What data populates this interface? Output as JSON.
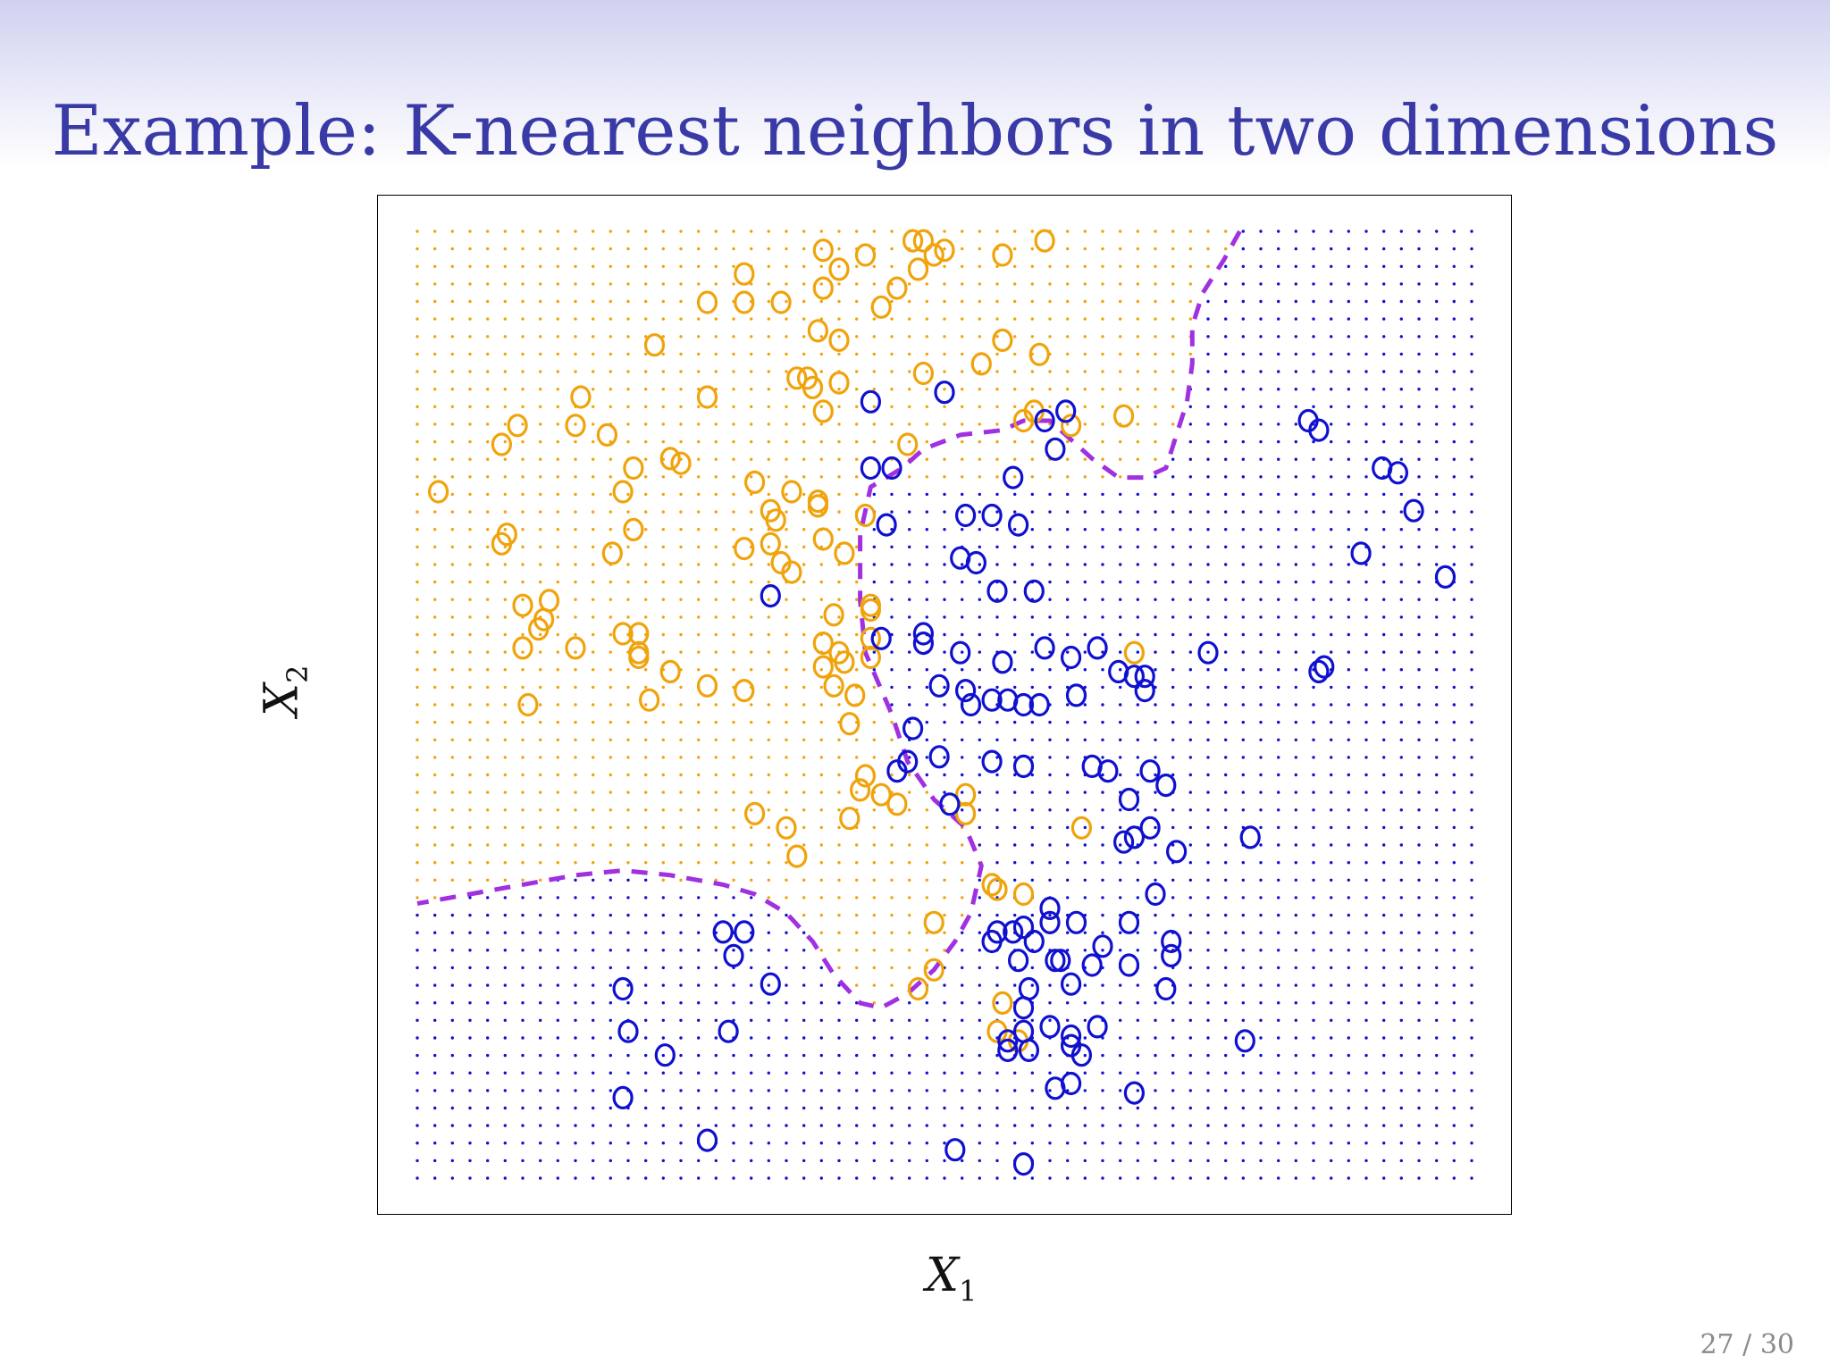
{
  "slide": {
    "title": "Example: K-nearest neighbors in two dimensions",
    "page": "27 / 30"
  },
  "colors": {
    "orange": "#f0a30a",
    "blue": "#1010d0",
    "boundary": "#a030e0",
    "title": "#3a3aa6"
  },
  "chart_data": {
    "type": "scatter",
    "title": "",
    "xlabel_var": "X",
    "xlabel_sub": "1",
    "ylabel_var": "X",
    "ylabel_sub": "2",
    "xlim": [
      0,
      1
    ],
    "ylim": [
      0,
      1
    ],
    "marker": "o",
    "grid_points": {
      "nx": 61,
      "ny": 55
    },
    "legend": "none",
    "series": [
      {
        "class": "orange",
        "color": "#f0a30a",
        "points": [
          [
            0.02,
            0.725
          ],
          [
            0.08,
            0.775
          ],
          [
            0.095,
            0.795
          ],
          [
            0.15,
            0.795
          ],
          [
            0.18,
            0.785
          ],
          [
            0.155,
            0.825
          ],
          [
            0.195,
            0.725
          ],
          [
            0.205,
            0.685
          ],
          [
            0.185,
            0.66
          ],
          [
            0.225,
            0.88
          ],
          [
            0.24,
            0.76
          ],
          [
            0.205,
            0.75
          ],
          [
            0.25,
            0.755
          ],
          [
            0.275,
            0.825
          ],
          [
            0.31,
            0.925
          ],
          [
            0.275,
            0.925
          ],
          [
            0.31,
            0.955
          ],
          [
            0.38,
            0.895
          ],
          [
            0.4,
            0.885
          ],
          [
            0.37,
            0.845
          ],
          [
            0.345,
            0.925
          ],
          [
            0.355,
            0.725
          ],
          [
            0.32,
            0.735
          ],
          [
            0.08,
            0.67
          ],
          [
            0.085,
            0.68
          ],
          [
            0.1,
            0.605
          ],
          [
            0.125,
            0.61
          ],
          [
            0.12,
            0.59
          ],
          [
            0.115,
            0.58
          ],
          [
            0.1,
            0.56
          ],
          [
            0.15,
            0.56
          ],
          [
            0.195,
            0.575
          ],
          [
            0.21,
            0.575
          ],
          [
            0.21,
            0.555
          ],
          [
            0.21,
            0.55
          ],
          [
            0.24,
            0.535
          ],
          [
            0.22,
            0.505
          ],
          [
            0.105,
            0.5
          ],
          [
            0.275,
            0.52
          ],
          [
            0.31,
            0.515
          ],
          [
            0.355,
            0.64
          ],
          [
            0.31,
            0.665
          ],
          [
            0.38,
            0.715
          ],
          [
            0.38,
            0.71
          ],
          [
            0.335,
            0.705
          ],
          [
            0.335,
            0.67
          ],
          [
            0.34,
            0.695
          ],
          [
            0.345,
            0.65
          ],
          [
            0.385,
            0.675
          ],
          [
            0.385,
            0.54
          ],
          [
            0.385,
            0.565
          ],
          [
            0.4,
            0.555
          ],
          [
            0.405,
            0.545
          ],
          [
            0.395,
            0.52
          ],
          [
            0.415,
            0.51
          ],
          [
            0.41,
            0.48
          ],
          [
            0.43,
            0.55
          ],
          [
            0.43,
            0.57
          ],
          [
            0.43,
            0.605
          ],
          [
            0.395,
            0.595
          ],
          [
            0.405,
            0.66
          ],
          [
            0.425,
            0.7
          ],
          [
            0.385,
            0.81
          ],
          [
            0.375,
            0.835
          ],
          [
            0.36,
            0.845
          ],
          [
            0.4,
            0.84
          ],
          [
            0.465,
            0.775
          ],
          [
            0.48,
            0.85
          ],
          [
            0.535,
            0.86
          ],
          [
            0.555,
            0.885
          ],
          [
            0.555,
            0.975
          ],
          [
            0.49,
            0.975
          ],
          [
            0.475,
            0.96
          ],
          [
            0.4,
            0.96
          ],
          [
            0.425,
            0.975
          ],
          [
            0.385,
            0.94
          ],
          [
            0.385,
            0.98
          ],
          [
            0.455,
            0.94
          ],
          [
            0.44,
            0.92
          ],
          [
            0.43,
            0.6
          ],
          [
            0.455,
            0.395
          ],
          [
            0.425,
            0.425
          ],
          [
            0.42,
            0.41
          ],
          [
            0.44,
            0.405
          ],
          [
            0.41,
            0.38
          ],
          [
            0.35,
            0.37
          ],
          [
            0.32,
            0.385
          ],
          [
            0.36,
            0.34
          ],
          [
            0.52,
            0.385
          ],
          [
            0.52,
            0.405
          ],
          [
            0.575,
            0.3
          ],
          [
            0.545,
            0.31
          ],
          [
            0.55,
            0.305
          ],
          [
            0.49,
            0.27
          ],
          [
            0.475,
            0.2
          ],
          [
            0.49,
            0.22
          ],
          [
            0.555,
            0.185
          ],
          [
            0.55,
            0.155
          ],
          [
            0.57,
            0.145
          ],
          [
            0.63,
            0.37
          ],
          [
            0.68,
            0.555
          ],
          [
            0.575,
            0.8
          ],
          [
            0.585,
            0.81
          ],
          [
            0.62,
            0.795
          ],
          [
            0.67,
            0.805
          ],
          [
            0.59,
            0.87
          ],
          [
            0.595,
            0.99
          ],
          [
            0.48,
            0.99
          ],
          [
            0.5,
            0.98
          ],
          [
            0.47,
            0.99
          ]
        ]
      },
      {
        "class": "blue",
        "color": "#1010d0",
        "points": [
          [
            0.43,
            0.82
          ],
          [
            0.5,
            0.83
          ],
          [
            0.43,
            0.75
          ],
          [
            0.445,
            0.69
          ],
          [
            0.515,
            0.655
          ],
          [
            0.52,
            0.7
          ],
          [
            0.545,
            0.7
          ],
          [
            0.565,
            0.74
          ],
          [
            0.57,
            0.69
          ],
          [
            0.595,
            0.8
          ],
          [
            0.615,
            0.81
          ],
          [
            0.605,
            0.77
          ],
          [
            0.53,
            0.65
          ],
          [
            0.55,
            0.62
          ],
          [
            0.585,
            0.62
          ],
          [
            0.45,
            0.75
          ],
          [
            0.335,
            0.615
          ],
          [
            0.44,
            0.57
          ],
          [
            0.48,
            0.565
          ],
          [
            0.48,
            0.575
          ],
          [
            0.515,
            0.555
          ],
          [
            0.555,
            0.545
          ],
          [
            0.595,
            0.56
          ],
          [
            0.645,
            0.56
          ],
          [
            0.665,
            0.535
          ],
          [
            0.68,
            0.53
          ],
          [
            0.69,
            0.53
          ],
          [
            0.69,
            0.515
          ],
          [
            0.495,
            0.52
          ],
          [
            0.52,
            0.515
          ],
          [
            0.545,
            0.505
          ],
          [
            0.56,
            0.505
          ],
          [
            0.575,
            0.5
          ],
          [
            0.59,
            0.5
          ],
          [
            0.625,
            0.51
          ],
          [
            0.47,
            0.475
          ],
          [
            0.525,
            0.5
          ],
          [
            0.465,
            0.44
          ],
          [
            0.495,
            0.445
          ],
          [
            0.455,
            0.43
          ],
          [
            0.545,
            0.44
          ],
          [
            0.575,
            0.435
          ],
          [
            0.64,
            0.435
          ],
          [
            0.655,
            0.43
          ],
          [
            0.695,
            0.43
          ],
          [
            0.71,
            0.415
          ],
          [
            0.675,
            0.4
          ],
          [
            0.505,
            0.395
          ],
          [
            0.67,
            0.355
          ],
          [
            0.68,
            0.36
          ],
          [
            0.695,
            0.37
          ],
          [
            0.72,
            0.345
          ],
          [
            0.75,
            0.555
          ],
          [
            0.79,
            0.36
          ],
          [
            0.7,
            0.3
          ],
          [
            0.675,
            0.27
          ],
          [
            0.6,
            0.285
          ],
          [
            0.6,
            0.27
          ],
          [
            0.625,
            0.27
          ],
          [
            0.575,
            0.265
          ],
          [
            0.585,
            0.25
          ],
          [
            0.65,
            0.245
          ],
          [
            0.675,
            0.225
          ],
          [
            0.715,
            0.235
          ],
          [
            0.71,
            0.2
          ],
          [
            0.545,
            0.25
          ],
          [
            0.55,
            0.26
          ],
          [
            0.565,
            0.26
          ],
          [
            0.57,
            0.23
          ],
          [
            0.605,
            0.23
          ],
          [
            0.61,
            0.23
          ],
          [
            0.64,
            0.225
          ],
          [
            0.62,
            0.205
          ],
          [
            0.58,
            0.2
          ],
          [
            0.575,
            0.18
          ],
          [
            0.6,
            0.16
          ],
          [
            0.575,
            0.155
          ],
          [
            0.56,
            0.145
          ],
          [
            0.56,
            0.135
          ],
          [
            0.58,
            0.135
          ],
          [
            0.63,
            0.13
          ],
          [
            0.62,
            0.15
          ],
          [
            0.62,
            0.14
          ],
          [
            0.645,
            0.16
          ],
          [
            0.605,
            0.095
          ],
          [
            0.62,
            0.1
          ],
          [
            0.68,
            0.09
          ],
          [
            0.715,
            0.25
          ],
          [
            0.785,
            0.145
          ],
          [
            0.29,
            0.26
          ],
          [
            0.31,
            0.26
          ],
          [
            0.3,
            0.235
          ],
          [
            0.335,
            0.205
          ],
          [
            0.195,
            0.2
          ],
          [
            0.2,
            0.155
          ],
          [
            0.235,
            0.13
          ],
          [
            0.295,
            0.155
          ],
          [
            0.195,
            0.085
          ],
          [
            0.275,
            0.04
          ],
          [
            0.51,
            0.03
          ],
          [
            0.575,
            0.015
          ],
          [
            0.845,
            0.8
          ],
          [
            0.855,
            0.79
          ],
          [
            0.915,
            0.75
          ],
          [
            0.93,
            0.745
          ],
          [
            0.945,
            0.705
          ],
          [
            0.895,
            0.66
          ],
          [
            0.975,
            0.635
          ],
          [
            0.855,
            0.535
          ],
          [
            0.86,
            0.54
          ],
          [
            0.62,
            0.55
          ]
        ]
      }
    ],
    "boundary": {
      "style": "dashed",
      "color": "#a030e0",
      "curves": [
        [
          [
            0.78,
            1.0
          ],
          [
            0.765,
            0.97
          ],
          [
            0.745,
            0.935
          ],
          [
            0.735,
            0.9
          ],
          [
            0.735,
            0.86
          ],
          [
            0.73,
            0.82
          ],
          [
            0.72,
            0.785
          ],
          [
            0.71,
            0.75
          ],
          [
            0.69,
            0.74
          ],
          [
            0.665,
            0.74
          ],
          [
            0.64,
            0.76
          ],
          [
            0.62,
            0.78
          ],
          [
            0.6,
            0.8
          ],
          [
            0.575,
            0.8
          ],
          [
            0.555,
            0.79
          ],
          [
            0.515,
            0.785
          ],
          [
            0.48,
            0.77
          ],
          [
            0.46,
            0.75
          ],
          [
            0.43,
            0.73
          ],
          [
            0.42,
            0.68
          ],
          [
            0.42,
            0.61
          ],
          [
            0.425,
            0.555
          ],
          [
            0.45,
            0.49
          ],
          [
            0.465,
            0.44
          ],
          [
            0.49,
            0.4
          ],
          [
            0.52,
            0.37
          ],
          [
            0.535,
            0.33
          ],
          [
            0.525,
            0.28
          ],
          [
            0.51,
            0.25
          ],
          [
            0.49,
            0.22
          ],
          [
            0.465,
            0.195
          ],
          [
            0.44,
            0.18
          ],
          [
            0.42,
            0.185
          ],
          [
            0.395,
            0.215
          ],
          [
            0.375,
            0.25
          ],
          [
            0.35,
            0.28
          ],
          [
            0.32,
            0.3
          ],
          [
            0.29,
            0.31
          ],
          [
            0.24,
            0.32
          ],
          [
            0.195,
            0.325
          ],
          [
            0.15,
            0.32
          ],
          [
            0.1,
            0.31
          ],
          [
            0.05,
            0.3
          ],
          [
            0.0,
            0.29
          ]
        ]
      ]
    }
  }
}
